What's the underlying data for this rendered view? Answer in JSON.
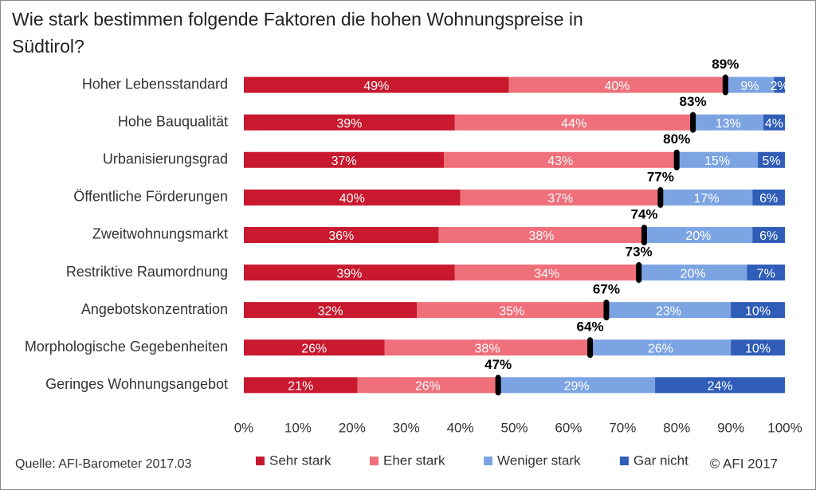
{
  "chart_data": {
    "type": "stacked-bar-horizontal",
    "title": "Wie stark bestimmen folgende Faktoren die hohen Wohnungspreise in Südtirol?",
    "categories": [
      "Hoher Lebensstandard",
      "Hohe Bauqualität",
      "Urbanisierungsgrad",
      "Öffentliche Förderungen",
      "Zweitwohnungsmarkt",
      "Restriktive Raumordnung",
      "Angebotskonzentration",
      "Morphologische Gegebenheiten",
      "Geringes Wohnungsangebot"
    ],
    "series": [
      {
        "name": "Sehr stark",
        "color": "#c8192e",
        "values": [
          49,
          39,
          37,
          40,
          36,
          39,
          32,
          26,
          21
        ],
        "value_labels": [
          "49%",
          "39%",
          "37%",
          "40%",
          "36%",
          "39%",
          "32%",
          "26%",
          "21%"
        ]
      },
      {
        "name": "Eher stark",
        "color": "#ef6f7a",
        "values": [
          40,
          44,
          43,
          37,
          38,
          34,
          35,
          38,
          26
        ],
        "value_labels": [
          "40%",
          "44%",
          "43%",
          "37%",
          "38%",
          "34%",
          "35%",
          "38%",
          "26%"
        ]
      },
      {
        "name": "Weniger stark",
        "color": "#7ca4e2",
        "values": [
          9,
          13,
          15,
          17,
          20,
          20,
          23,
          26,
          29
        ],
        "value_labels": [
          "9%",
          "13%",
          "15%",
          "17%",
          "20%",
          "20%",
          "23%",
          "26%",
          "29%"
        ]
      },
      {
        "name": "Gar nicht",
        "color": "#2f5db7",
        "values": [
          2,
          4,
          5,
          6,
          6,
          7,
          10,
          10,
          24
        ],
        "value_labels": [
          "2%",
          "4%",
          "5%",
          "6%",
          "6%",
          "7%",
          "10%",
          "10%",
          "24%"
        ]
      }
    ],
    "totals": {
      "color": "#000000",
      "values": [
        89,
        83,
        80,
        77,
        74,
        73,
        67,
        64,
        47
      ],
      "value_labels": [
        "89%",
        "83%",
        "80%",
        "77%",
        "74%",
        "73%",
        "67%",
        "64%",
        "47%"
      ]
    },
    "xlim": [
      0,
      100
    ],
    "xticks": [
      {
        "value": 0,
        "label": "0%"
      },
      {
        "value": 10,
        "label": "10%"
      },
      {
        "value": 20,
        "label": "20%"
      },
      {
        "value": 30,
        "label": "30%"
      },
      {
        "value": 40,
        "label": "40%"
      },
      {
        "value": 50,
        "label": "50%"
      },
      {
        "value": 60,
        "label": "60%"
      },
      {
        "value": 70,
        "label": "70%"
      },
      {
        "value": 80,
        "label": "80%"
      },
      {
        "value": 90,
        "label": "90%"
      },
      {
        "value": 100,
        "label": "100%"
      }
    ],
    "grid": false,
    "legend": "bottom",
    "source": "Quelle: AFI-Barometer 2017.03",
    "copyright": "© AFI 2017"
  }
}
